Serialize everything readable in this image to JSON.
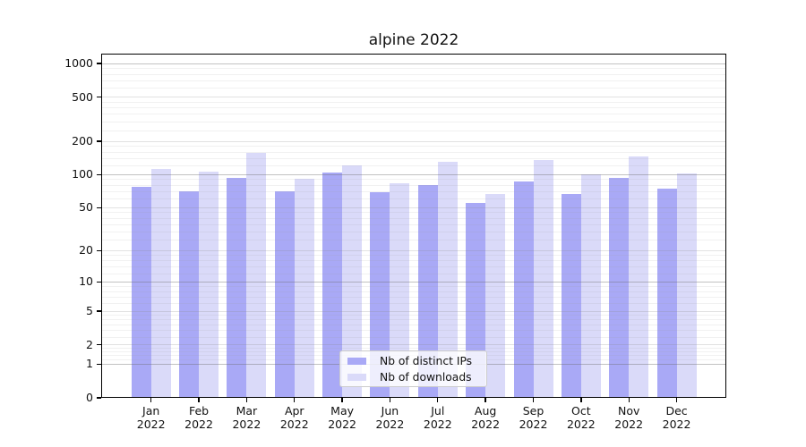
{
  "chart_data": {
    "type": "bar",
    "title": "alpine 2022",
    "categories": [
      "Jan",
      "Feb",
      "Mar",
      "Apr",
      "May",
      "Jun",
      "Jul",
      "Aug",
      "Sep",
      "Oct",
      "Nov",
      "Dec"
    ],
    "category_year": "2022",
    "series": [
      {
        "name": "Nb of distinct IPs",
        "color": "#a9a9f6",
        "values": [
          77,
          71,
          94,
          71,
          105,
          69,
          81,
          55,
          87,
          67,
          94,
          75
        ]
      },
      {
        "name": "Nb of downloads",
        "color": "#dadaf9",
        "values": [
          113,
          107,
          157,
          91,
          121,
          83,
          130,
          67,
          135,
          100,
          145,
          102
        ]
      }
    ],
    "yscale": "symlog",
    "yticks": [
      0,
      1,
      2,
      5,
      10,
      20,
      50,
      100,
      200,
      500,
      1000
    ],
    "ylim": [
      0,
      1230
    ],
    "grid": "both",
    "legend_position": "lower center",
    "xlabel": "",
    "ylabel": ""
  },
  "colors": {
    "background": "#ffffff",
    "axis": "#000000",
    "grid_decade": "#c6c6c6",
    "grid_major": "#e3e3e3",
    "grid_minor": "#f0f0f0",
    "text": "#111111"
  }
}
